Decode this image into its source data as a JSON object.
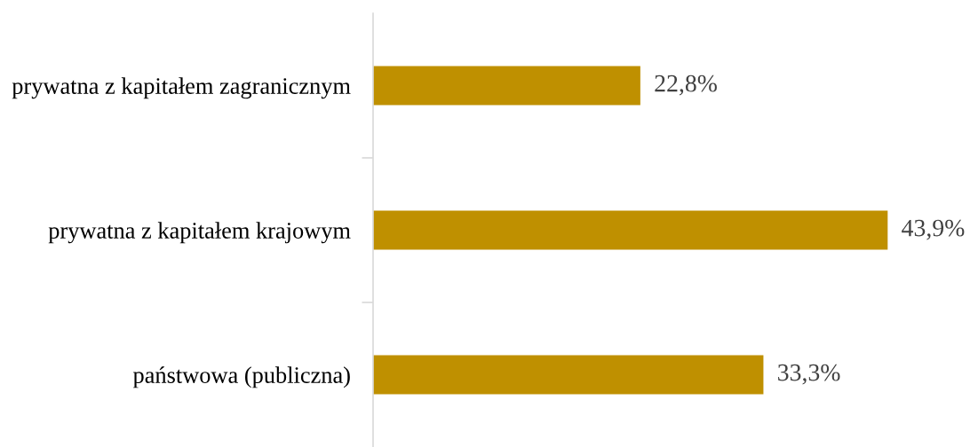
{
  "chart_data": {
    "type": "bar",
    "orientation": "horizontal",
    "categories": [
      "prywatna z kapitałem zagranicznym",
      "prywatna z kapitałem krajowym",
      "państwowa (publiczna)"
    ],
    "values": [
      22.8,
      43.9,
      33.3
    ],
    "color": "#bf9000",
    "value_labels": [
      "22,8%",
      "43,9%",
      "33,3%"
    ],
    "grid": false,
    "legend": false,
    "tick_labels": "y"
  }
}
